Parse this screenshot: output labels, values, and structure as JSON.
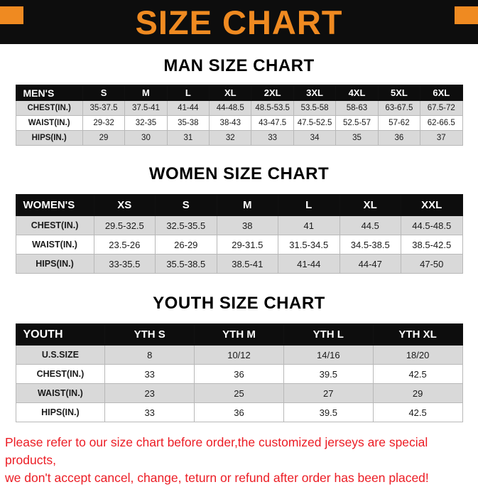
{
  "colors": {
    "accent": "#ef8a21",
    "footer_red": "#ec1c24",
    "table_header_bg": "#0d0d0d",
    "row_stripe": "#d9d9d9"
  },
  "banner": {
    "title": "SIZE CHART"
  },
  "sections": [
    {
      "heading": "MAN SIZE CHART",
      "table": {
        "header": [
          "MEN'S",
          "S",
          "M",
          "L",
          "XL",
          "2XL",
          "3XL",
          "4XL",
          "5XL",
          "6XL"
        ],
        "rows": [
          [
            "CHEST(IN.)",
            "35-37.5",
            "37.5-41",
            "41-44",
            "44-48.5",
            "48.5-53.5",
            "53.5-58",
            "58-63",
            "63-67.5",
            "67.5-72"
          ],
          [
            "WAIST(IN.)",
            "29-32",
            "32-35",
            "35-38",
            "38-43",
            "43-47.5",
            "47.5-52.5",
            "52.5-57",
            "57-62",
            "62-66.5"
          ],
          [
            "HIPS(IN.)",
            "29",
            "30",
            "31",
            "32",
            "33",
            "34",
            "35",
            "36",
            "37"
          ]
        ]
      }
    },
    {
      "heading": "WOMEN SIZE CHART",
      "table": {
        "header": [
          "WOMEN'S",
          "XS",
          "S",
          "M",
          "L",
          "XL",
          "XXL"
        ],
        "rows": [
          [
            "CHEST(IN.)",
            "29.5-32.5",
            "32.5-35.5",
            "38",
            "41",
            "44.5",
            "44.5-48.5"
          ],
          [
            "WAIST(IN.)",
            "23.5-26",
            "26-29",
            "29-31.5",
            "31.5-34.5",
            "34.5-38.5",
            "38.5-42.5"
          ],
          [
            "HIPS(IN.)",
            "33-35.5",
            "35.5-38.5",
            "38.5-41",
            "41-44",
            "44-47",
            "47-50"
          ]
        ]
      }
    },
    {
      "heading": "YOUTH SIZE CHART",
      "table": {
        "header": [
          "YOUTH",
          "YTH S",
          "YTH M",
          "YTH L",
          "YTH XL"
        ],
        "rows": [
          [
            "U.S.SIZE",
            "8",
            "10/12",
            "14/16",
            "18/20"
          ],
          [
            "CHEST(IN.)",
            "33",
            "36",
            "39.5",
            "42.5"
          ],
          [
            "WAIST(IN.)",
            "23",
            "25",
            "27",
            "29"
          ],
          [
            "HIPS(IN.)",
            "33",
            "36",
            "39.5",
            "42.5"
          ]
        ]
      }
    }
  ],
  "footer": {
    "lines": [
      "Please refer to our size chart before order,the customized jerseys are special products,",
      "we don't accept cancel, change, teturn or refund after order has been placed!"
    ]
  }
}
